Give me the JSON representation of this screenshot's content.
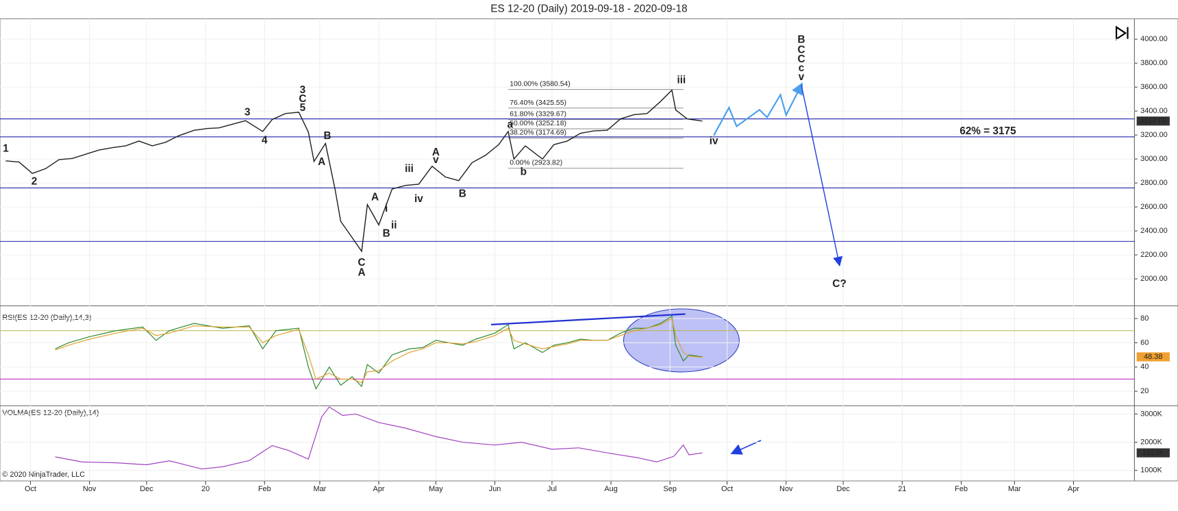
{
  "title": "ES 12-20 (Daily)  2019-09-18 - 2020-09-18",
  "footer": "© 2020 NinjaTrader, LLC",
  "chart_data": [
    {
      "type": "line",
      "title": "ES 12-20 (Daily)  2019-09-18 - 2020-09-18",
      "color": "#202020",
      "xlim": [
        "2019-09-15",
        "2021-05-03"
      ],
      "xticks": [
        {
          "value": "2019-10-01",
          "label": "Oct"
        },
        {
          "value": "2019-11-01",
          "label": "Nov"
        },
        {
          "value": "2019-12-01",
          "label": "Dec"
        },
        {
          "value": "2020-01-01",
          "label": "20"
        },
        {
          "value": "2020-02-01",
          "label": "Feb"
        },
        {
          "value": "2020-03-01",
          "label": "Mar"
        },
        {
          "value": "2020-04-01",
          "label": "Apr"
        },
        {
          "value": "2020-05-01",
          "label": "May"
        },
        {
          "value": "2020-06-01",
          "label": "Jun"
        },
        {
          "value": "2020-07-01",
          "label": "Jul"
        },
        {
          "value": "2020-08-01",
          "label": "Aug"
        },
        {
          "value": "2020-09-01",
          "label": "Sep"
        },
        {
          "value": "2020-10-01",
          "label": "Oct"
        },
        {
          "value": "2020-11-01",
          "label": "Nov"
        },
        {
          "value": "2020-12-01",
          "label": "Dec"
        },
        {
          "value": "2021-01-01",
          "label": "21"
        },
        {
          "value": "2021-02-01",
          "label": "Feb"
        },
        {
          "value": "2021-03-01",
          "label": "Mar"
        },
        {
          "value": "2021-04-01",
          "label": "Apr"
        }
      ],
      "ylim": [
        1775,
        4170
      ],
      "yticks": [
        {
          "value": 2000,
          "label": "2000.00"
        },
        {
          "value": 2200,
          "label": "2200.00"
        },
        {
          "value": 2400,
          "label": "2400.00"
        },
        {
          "value": 2600,
          "label": "2600.00"
        },
        {
          "value": 2800,
          "label": "2800.00"
        },
        {
          "value": 3000,
          "label": "3000.00"
        },
        {
          "value": 3200,
          "label": "3200.00"
        },
        {
          "value": 3400,
          "label": "3400.00"
        },
        {
          "value": 3600,
          "label": "3600.00"
        },
        {
          "value": 3800,
          "label": "3800.00"
        },
        {
          "value": 4000,
          "label": "4000.00"
        }
      ],
      "x": [
        "2019-09-18",
        "2019-09-25",
        "2019-10-02",
        "2019-10-09",
        "2019-10-16",
        "2019-10-23",
        "2019-10-30",
        "2019-11-06",
        "2019-11-13",
        "2019-11-20",
        "2019-11-27",
        "2019-12-04",
        "2019-12-11",
        "2019-12-18",
        "2019-12-26",
        "2020-01-02",
        "2020-01-08",
        "2020-01-15",
        "2020-01-22",
        "2020-01-31",
        "2020-02-05",
        "2020-02-12",
        "2020-02-19",
        "2020-02-24",
        "2020-02-27",
        "2020-03-04",
        "2020-03-09",
        "2020-03-12",
        "2020-03-16",
        "2020-03-23",
        "2020-03-26",
        "2020-04-01",
        "2020-04-08",
        "2020-04-15",
        "2020-04-22",
        "2020-04-29",
        "2020-05-06",
        "2020-05-13",
        "2020-05-20",
        "2020-05-27",
        "2020-06-03",
        "2020-06-08",
        "2020-06-11",
        "2020-06-17",
        "2020-06-26",
        "2020-07-02",
        "2020-07-09",
        "2020-07-16",
        "2020-07-23",
        "2020-07-30",
        "2020-08-06",
        "2020-08-13",
        "2020-08-20",
        "2020-08-27",
        "2020-09-02",
        "2020-09-04",
        "2020-09-10",
        "2020-09-18"
      ],
      "series": [
        {
          "color": "#202020",
          "values": [
            2985,
            2975,
            2880,
            2920,
            2995,
            3005,
            3040,
            3075,
            3095,
            3110,
            3150,
            3110,
            3140,
            3195,
            3240,
            3255,
            3260,
            3290,
            3320,
            3230,
            3330,
            3380,
            3390,
            3225,
            2980,
            3130,
            2750,
            2480,
            2390,
            2230,
            2620,
            2450,
            2750,
            2780,
            2790,
            2940,
            2850,
            2820,
            2970,
            3030,
            3120,
            3230,
            3000,
            3110,
            3000,
            3120,
            3150,
            3215,
            3235,
            3240,
            3335,
            3370,
            3380,
            3480,
            3575,
            3410,
            3335,
            3317
          ]
        }
      ],
      "last_value": {
        "value": 3317,
        "label": "3317.00"
      },
      "hlines": [
        {
          "value": 3335,
          "color": "#2020a8"
        },
        {
          "value": 3185,
          "color": "#2020a8"
        },
        {
          "value": 2759,
          "color": "#2020a8"
        },
        {
          "value": 2313,
          "color": "#2020a8"
        }
      ],
      "fib_x": [
        "2020-06-08",
        "2020-09-08"
      ],
      "fib_levels": [
        {
          "label": "100.00% (3580.54)",
          "value": 3580.54,
          "color": "#888888"
        },
        {
          "label": "76.40% (3425.55)",
          "value": 3425.55,
          "color": "#1f2f80"
        },
        {
          "label": "61.80% (3329.67)",
          "value": 3329.67,
          "color": "#20807a"
        },
        {
          "label": "50.00% (3252.18)",
          "value": 3252.18,
          "color": "#20807a"
        },
        {
          "label": "38.20% (3174.69)",
          "value": 3174.69,
          "color": "#1f2f80"
        },
        {
          "label": "0.00% (2923.82)",
          "value": 2923.82,
          "color": "#888888"
        }
      ],
      "projections": [
        {
          "color": "#4aa0ee",
          "x": [
            "2020-09-24",
            "2020-10-02",
            "2020-10-06",
            "2020-10-18",
            "2020-10-22",
            "2020-10-29",
            "2020-11-01",
            "2020-11-09"
          ],
          "y": [
            3197,
            3429,
            3273,
            3411,
            3348,
            3536,
            3367,
            3618
          ]
        },
        {
          "color": "#2040e0",
          "x": [
            "2020-11-09",
            "2020-11-29"
          ],
          "y": [
            3618,
            2119
          ]
        }
      ],
      "annotations": [
        {
          "text": "1",
          "x": "2019-09-18",
          "y": 3085,
          "color": "#000000"
        },
        {
          "text": "2",
          "x": "2019-10-03",
          "y": 2809,
          "color": "#000000"
        },
        {
          "text": "3",
          "x": "2020-01-23",
          "y": 3386,
          "color": "#000000"
        },
        {
          "text": "4",
          "x": "2020-02-01",
          "y": 3154,
          "color": "#000000"
        },
        {
          "text": "5",
          "x": "2020-02-21",
          "y": 3423,
          "color": "#000000"
        },
        {
          "text": "C",
          "x": "2020-02-21",
          "y": 3498,
          "color": "#e01010"
        },
        {
          "text": "3",
          "x": "2020-02-21",
          "y": 3574,
          "color": "#1030d0"
        },
        {
          "text": "B",
          "x": "2020-03-05",
          "y": 3191,
          "color": "#000000"
        },
        {
          "text": "A",
          "x": "2020-03-02",
          "y": 2972,
          "color": "#000000"
        },
        {
          "text": "C",
          "x": "2020-03-23",
          "y": 2132,
          "color": "#000000"
        },
        {
          "text": "A",
          "x": "2020-03-23",
          "y": 2050,
          "color": "#e01010"
        },
        {
          "text": "A",
          "x": "2020-03-30",
          "y": 2677,
          "color": "#000000"
        },
        {
          "text": "i",
          "x": "2020-04-05",
          "y": 2583,
          "color": "#000000"
        },
        {
          "text": "ii",
          "x": "2020-04-09",
          "y": 2445,
          "color": "#000000"
        },
        {
          "text": "B",
          "x": "2020-04-05",
          "y": 2376,
          "color": "#000000"
        },
        {
          "text": "iii",
          "x": "2020-04-17",
          "y": 2915,
          "color": "#000000"
        },
        {
          "text": "iv",
          "x": "2020-04-22",
          "y": 2665,
          "color": "#000000"
        },
        {
          "text": "A",
          "x": "2020-05-01",
          "y": 3053,
          "color": "#000000"
        },
        {
          "text": "v",
          "x": "2020-05-01",
          "y": 2991,
          "color": "#000000"
        },
        {
          "text": "B",
          "x": "2020-05-15",
          "y": 2708,
          "color": "#000000"
        },
        {
          "text": "a",
          "x": "2020-06-09",
          "y": 3285,
          "color": "#000000"
        },
        {
          "text": "b",
          "x": "2020-06-16",
          "y": 2890,
          "color": "#000000"
        },
        {
          "text": "iii",
          "x": "2020-09-07",
          "y": 3655,
          "color": "#000000"
        },
        {
          "text": "iv",
          "x": "2020-09-24",
          "y": 3147,
          "color": "#000000"
        },
        {
          "text": "B",
          "x": "2020-11-09",
          "y": 3994,
          "color": "#e01010"
        },
        {
          "text": "C",
          "x": "2020-11-09",
          "y": 3906,
          "color": "#000000"
        },
        {
          "text": "C",
          "x": "2020-11-09",
          "y": 3831,
          "color": "#000000"
        },
        {
          "text": "c",
          "x": "2020-11-09",
          "y": 3756,
          "color": "#000000"
        },
        {
          "text": "v",
          "x": "2020-11-09",
          "y": 3680,
          "color": "#000000"
        },
        {
          "text": "C?",
          "x": "2020-11-29",
          "y": 1956,
          "color": "#e01010"
        },
        {
          "text": "62% = 3175",
          "x": "2021-02-15",
          "y": 3229,
          "color": "#000000"
        }
      ]
    },
    {
      "type": "line",
      "title": "RSI(ES 12-20 (Daily),14,3)",
      "ylim": [
        8,
        90.5
      ],
      "yticks": [
        20,
        40,
        60,
        80
      ],
      "x": [
        "2019-10-14",
        "2019-10-21",
        "2019-11-01",
        "2019-11-15",
        "2019-11-29",
        "2019-12-06",
        "2019-12-13",
        "2019-12-26",
        "2020-01-10",
        "2020-01-24",
        "2020-01-31",
        "2020-02-07",
        "2020-02-19",
        "2020-02-24",
        "2020-02-28",
        "2020-03-06",
        "2020-03-12",
        "2020-03-18",
        "2020-03-23",
        "2020-03-26",
        "2020-04-01",
        "2020-04-08",
        "2020-04-17",
        "2020-04-24",
        "2020-05-01",
        "2020-05-08",
        "2020-05-15",
        "2020-05-22",
        "2020-06-01",
        "2020-06-08",
        "2020-06-11",
        "2020-06-17",
        "2020-06-26",
        "2020-07-02",
        "2020-07-09",
        "2020-07-16",
        "2020-07-23",
        "2020-07-30",
        "2020-08-06",
        "2020-08-13",
        "2020-08-20",
        "2020-08-27",
        "2020-09-02",
        "2020-09-04",
        "2020-09-08",
        "2020-09-11",
        "2020-09-18"
      ],
      "series": [
        {
          "color": "#2e8b2e",
          "values": [
            55,
            60,
            65,
            70,
            73,
            62,
            70,
            76,
            72,
            74,
            55,
            70,
            72,
            40,
            22,
            40,
            25,
            32,
            24,
            42,
            35,
            50,
            55,
            56,
            62,
            60,
            58,
            63,
            68,
            75,
            55,
            60,
            52,
            58,
            60,
            63,
            62,
            62,
            68,
            72,
            72,
            76,
            82,
            58,
            45,
            50,
            48.38
          ]
        },
        {
          "color": "#e0a030",
          "values": [
            54,
            58,
            63,
            68,
            72,
            66,
            68,
            74,
            73,
            73,
            60,
            66,
            71,
            50,
            30,
            35,
            30,
            30,
            27,
            36,
            37,
            45,
            52,
            55,
            60,
            60,
            59,
            61,
            66,
            72,
            62,
            59,
            55,
            57,
            59,
            62,
            62,
            62,
            66,
            70,
            72,
            75,
            80,
            66,
            52,
            49,
            48
          ]
        }
      ],
      "last_value": {
        "value": 48.38,
        "label": "48.38"
      },
      "hlines": [
        {
          "value": 70,
          "color": "#b5b54a"
        },
        {
          "value": 30,
          "color": "#c030c0"
        }
      ],
      "trendline": {
        "color": "#2030d0",
        "x": [
          "2020-05-30",
          "2020-09-09"
        ],
        "y": [
          75,
          83.7
        ]
      }
    },
    {
      "type": "line",
      "title": "VOLMA(ES 12-20 (Daily),14)",
      "ylim": [
        627000,
        3293000
      ],
      "yticks": [
        {
          "value": 1000000,
          "label": "1000K"
        },
        {
          "value": 2000000,
          "label": "2000K"
        },
        {
          "value": 3000000,
          "label": "3000K"
        }
      ],
      "x": [
        "2019-10-14",
        "2019-10-28",
        "2019-11-15",
        "2019-12-01",
        "2019-12-13",
        "2019-12-30",
        "2020-01-10",
        "2020-01-24",
        "2020-02-05",
        "2020-02-14",
        "2020-02-24",
        "2020-03-02",
        "2020-03-06",
        "2020-03-13",
        "2020-03-20",
        "2020-04-01",
        "2020-04-15",
        "2020-05-01",
        "2020-05-15",
        "2020-06-01",
        "2020-06-15",
        "2020-07-01",
        "2020-07-15",
        "2020-08-01",
        "2020-08-15",
        "2020-08-25",
        "2020-09-03",
        "2020-09-08",
        "2020-09-11",
        "2020-09-18"
      ],
      "series": [
        {
          "color": "#a040c0",
          "values": [
            1480000,
            1300000,
            1270000,
            1200000,
            1340000,
            1050000,
            1130000,
            1350000,
            1880000,
            1700000,
            1400000,
            2900000,
            3250000,
            2950000,
            3000000,
            2700000,
            2500000,
            2200000,
            2000000,
            1900000,
            2000000,
            1750000,
            1800000,
            1600000,
            1450000,
            1300000,
            1500000,
            1900000,
            1550000,
            1623000
          ]
        }
      ],
      "last_value": {
        "value": 1623000,
        "label": "1623K"
      }
    }
  ]
}
